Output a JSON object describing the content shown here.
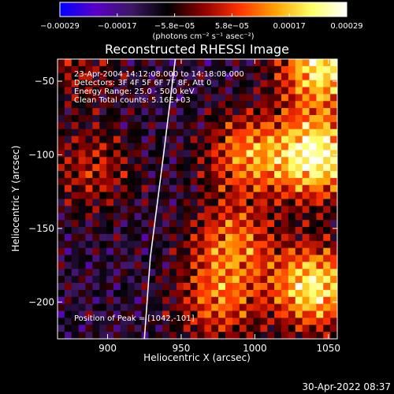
{
  "chart_data": {
    "type": "heatmap",
    "title": "Reconstructed RHESSI Image",
    "xlabel": "Heliocentric X (arcsec)",
    "ylabel": "Heliocentric Y (arcsec)",
    "xlim": [
      866,
      1056
    ],
    "ylim": [
      -225,
      -35
    ],
    "x_ticks": [
      900,
      950,
      1000,
      1050
    ],
    "y_ticks": [
      -50,
      -100,
      -150,
      -200
    ],
    "x_tick_labels": [
      "900",
      "950",
      "1000",
      "1050"
    ],
    "y_tick_labels": [
      "−50",
      "−100",
      "−150",
      "−200"
    ],
    "colorbar": {
      "tick_labels": [
        "−0.00029",
        "−0.00017",
        "−5.8e−05",
        "5.8e−05",
        "0.00017",
        "0.00029"
      ],
      "range": [
        -0.00029,
        0.00029
      ],
      "units_label": "(photons cm⁻² s⁻¹ asec⁻²)",
      "colormap": [
        "#0000ff",
        "#5a00c8",
        "#3c1864",
        "#000000",
        "#8c0000",
        "#ff3200",
        "#ffa000",
        "#ffff64",
        "#ffffff"
      ]
    },
    "annotations": {
      "time_range": "23-Apr-2004 14:12:08.000 to 14:18:08.000",
      "detectors": "Detectors: 3F 4F 5F 6F 7F 8F, Att 0",
      "energy": "Energy Range: 25.0 - 50.0 keV",
      "clean": "Clean     Total counts: 5.16E+03",
      "peak": "Position of Peak = [1042,-101]"
    },
    "limb_curve": {
      "points": [
        [
          946,
          -35
        ],
        [
          938,
          -100
        ],
        [
          929,
          -170
        ],
        [
          925,
          -225
        ]
      ]
    },
    "peak_position": [
      1042,
      -101
    ],
    "bright_regions": [
      {
        "center": [
          1042,
          -101
        ],
        "strength": 1.0
      },
      {
        "center": [
          1045,
          -40
        ],
        "strength": 0.9
      },
      {
        "center": [
          1040,
          -190
        ],
        "strength": 0.9
      },
      {
        "center": [
          995,
          -100
        ],
        "strength": 0.6
      },
      {
        "center": [
          985,
          -160
        ],
        "strength": 0.55
      },
      {
        "center": [
          975,
          -200
        ],
        "strength": 0.5
      },
      {
        "center": [
          890,
          -110
        ],
        "strength": 0.35
      },
      {
        "center": [
          880,
          -40
        ],
        "strength": 0.25
      }
    ]
  },
  "footer": {
    "timestamp": "30-Apr-2022 08:37"
  }
}
